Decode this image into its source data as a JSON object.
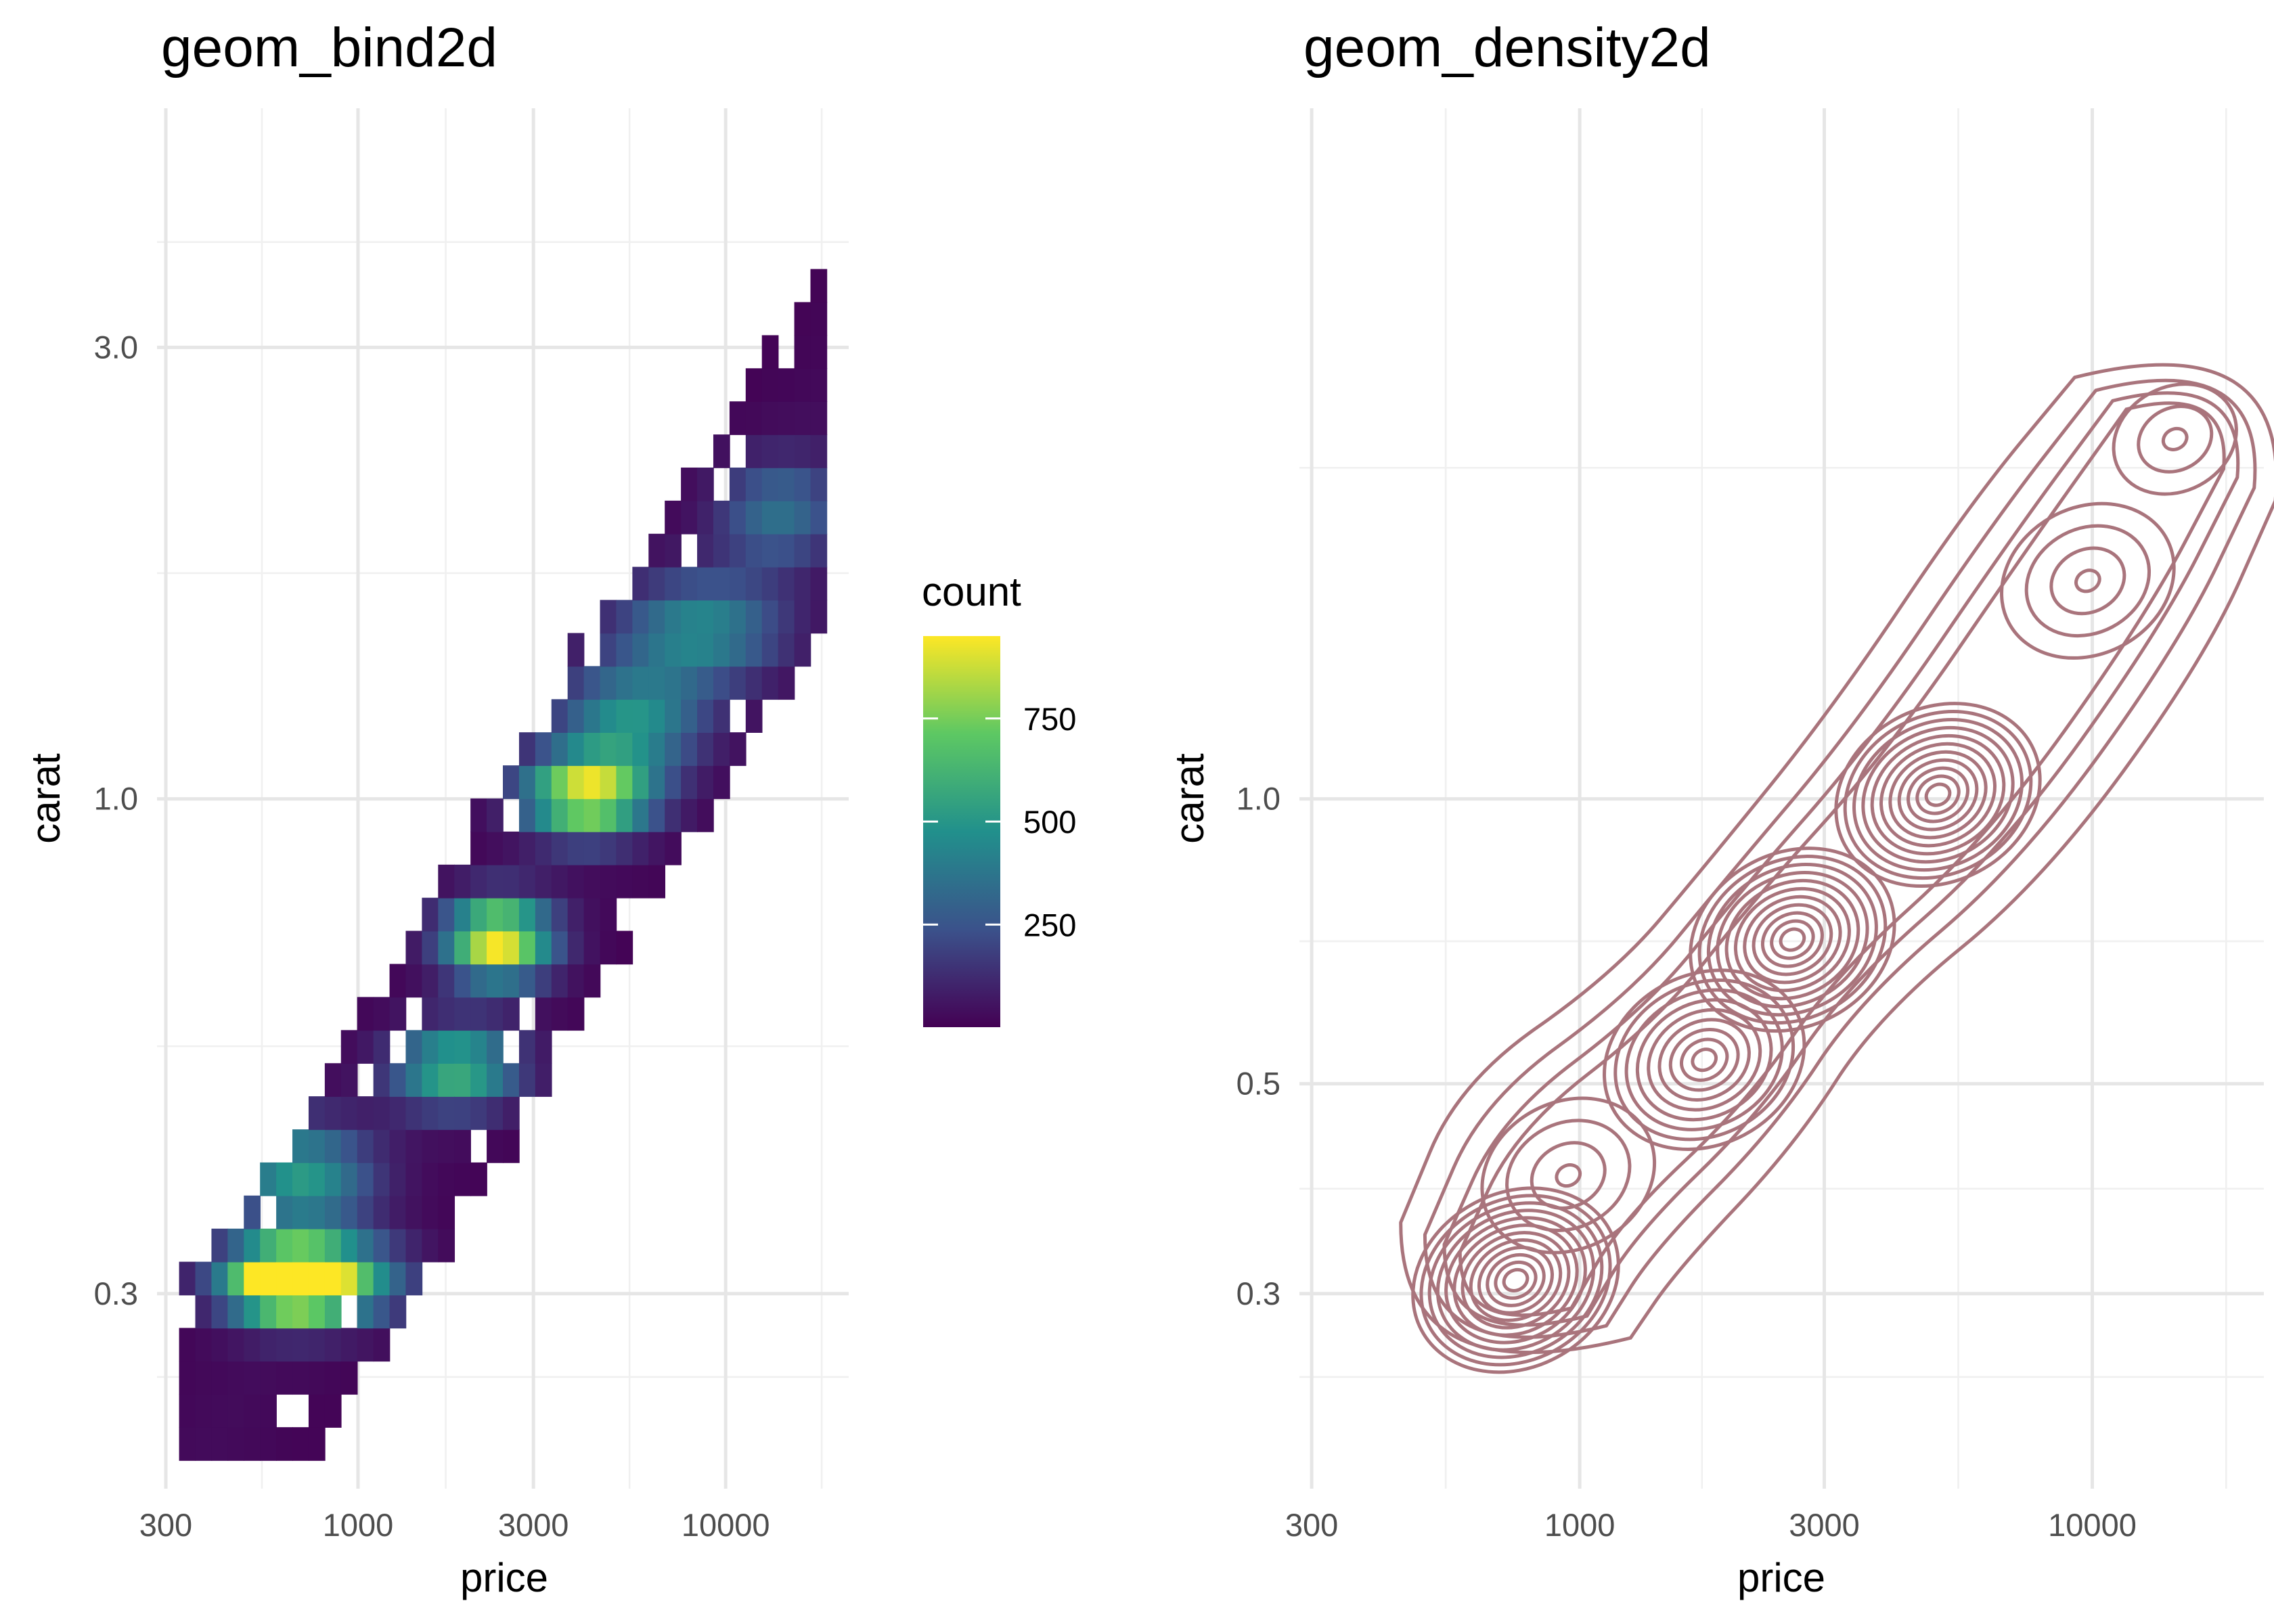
{
  "chart_data": [
    {
      "type": "heatmap",
      "title": "geom_bind2d",
      "xlabel": "price",
      "ylabel": "carat",
      "x_scale": "log10",
      "y_scale": "log10",
      "xlim": [
        326,
        18823
      ],
      "ylim": [
        0.2,
        5.01
      ],
      "x_breaks": [
        300,
        1000,
        3000,
        10000
      ],
      "x_tick_labels": [
        "300",
        "1000",
        "3000",
        "10000"
      ],
      "y_breaks": [
        0.3,
        1.0,
        3.0
      ],
      "y_tick_labels": [
        "0.3",
        "1.0",
        "3.0"
      ],
      "legend": {
        "title": "count",
        "placement": "right",
        "breaks": [
          250,
          500,
          750
        ],
        "labels": [
          "250",
          "500",
          "750"
        ],
        "range": [
          1,
          950
        ],
        "colors": [
          "#440154",
          "#3b528b",
          "#21908c",
          "#5dc863",
          "#fde725"
        ]
      },
      "grid": true,
      "ridges": [
        {
          "price": 750,
          "carat": 0.31,
          "x_spread": 0.15,
          "y_spread": 0.03,
          "peak": 950
        },
        {
          "price": 620,
          "carat": 0.31,
          "x_spread": 0.1,
          "y_spread": 0.025,
          "peak": 600
        },
        {
          "price": 700,
          "carat": 0.4,
          "x_spread": 0.13,
          "y_spread": 0.04,
          "peak": 500
        },
        {
          "price": 1850,
          "carat": 0.52,
          "x_spread": 0.12,
          "y_spread": 0.03,
          "peak": 600
        },
        {
          "price": 2400,
          "carat": 0.71,
          "x_spread": 0.1,
          "y_spread": 0.03,
          "peak": 950
        },
        {
          "price": 4200,
          "carat": 1.01,
          "x_spread": 0.12,
          "y_spread": 0.03,
          "peak": 900
        },
        {
          "price": 5500,
          "carat": 1.21,
          "x_spread": 0.14,
          "y_spread": 0.04,
          "peak": 450
        },
        {
          "price": 8500,
          "carat": 1.51,
          "x_spread": 0.16,
          "y_spread": 0.04,
          "peak": 420
        },
        {
          "price": 14000,
          "carat": 2.01,
          "x_spread": 0.12,
          "y_spread": 0.04,
          "peak": 320
        }
      ]
    },
    {
      "type": "contour",
      "title": "geom_density2d",
      "xlabel": "price",
      "ylabel": "carat",
      "x_scale": "log10",
      "y_scale": "log10",
      "xlim": [
        326,
        18823
      ],
      "ylim": [
        0.2,
        5.01
      ],
      "x_breaks": [
        300,
        1000,
        3000,
        10000
      ],
      "x_tick_labels": [
        "300",
        "1000",
        "3000",
        "10000"
      ],
      "y_breaks": [
        0.3,
        0.5,
        1.0
      ],
      "y_tick_labels": [
        "0.3",
        "0.5",
        "1.0"
      ],
      "line_color": "#a9747c",
      "grid": true,
      "peaks": [
        {
          "price": 750,
          "carat": 0.31,
          "levels": 12
        },
        {
          "price": 950,
          "carat": 0.4,
          "levels": 4
        },
        {
          "price": 1750,
          "carat": 0.53,
          "levels": 9
        },
        {
          "price": 2600,
          "carat": 0.71,
          "levels": 11
        },
        {
          "price": 5000,
          "carat": 1.01,
          "levels": 11
        },
        {
          "price": 9800,
          "carat": 1.7,
          "levels": 4
        },
        {
          "price": 14500,
          "carat": 2.4,
          "levels": 3
        }
      ]
    }
  ]
}
